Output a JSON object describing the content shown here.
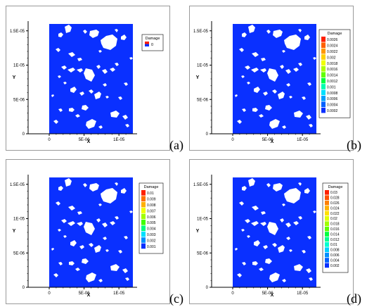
{
  "figure": {
    "panels": [
      {
        "tag": "(a)",
        "legend": {
          "title": "Damage",
          "labels": [
            "0"
          ],
          "colors": [
            "#0a30ff"
          ]
        }
      },
      {
        "tag": "(b)",
        "legend": {
          "title": "Damage",
          "labels": [
            "0.0026",
            "0.0024",
            "0.0022",
            "0.002",
            "0.0018",
            "0.0016",
            "0.0014",
            "0.0012",
            "0.001",
            "0.0008",
            "0.0006",
            "0.0004",
            "0.0002"
          ],
          "colors": [
            "#ff2000",
            "#ff6000",
            "#ff9800",
            "#ffd000",
            "#f0ff00",
            "#b0ff00",
            "#60ff00",
            "#00ff40",
            "#00ffb0",
            "#00e0ff",
            "#00a0ff",
            "#0060ff",
            "#0a30ff"
          ]
        }
      },
      {
        "tag": "(c)",
        "legend": {
          "title": "Damage",
          "labels": [
            "0.01",
            "0.009",
            "0.008",
            "0.007",
            "0.006",
            "0.005",
            "0.004",
            "0.003",
            "0.002",
            "0.001"
          ],
          "colors": [
            "#ff2000",
            "#ff7000",
            "#ffb000",
            "#f0ff00",
            "#a0ff00",
            "#40ff00",
            "#00ff80",
            "#00e0ff",
            "#0090ff",
            "#0a30ff"
          ]
        }
      },
      {
        "tag": "(d)",
        "legend": {
          "title": "Damage",
          "labels": [
            "0.03",
            "0.028",
            "0.026",
            "0.024",
            "0.022",
            "0.02",
            "0.018",
            "0.016",
            "0.014",
            "0.012",
            "0.01",
            "0.008",
            "0.006",
            "0.004",
            "0.002"
          ],
          "colors": [
            "#ff2000",
            "#ff5000",
            "#ff8000",
            "#ffb000",
            "#ffe000",
            "#e0ff00",
            "#a0ff00",
            "#60ff00",
            "#00ff40",
            "#00ff90",
            "#00ffd0",
            "#00d0ff",
            "#0090ff",
            "#0060ff",
            "#0a30ff"
          ]
        }
      }
    ],
    "axes": {
      "xlabel": "X",
      "ylabel": "Y",
      "xticks": [
        "0",
        "5E-06",
        "1E-05"
      ],
      "yticks": [
        "0",
        "5E-06",
        "1E-05",
        "1.5E-05"
      ]
    },
    "field_color": "#0a30ff",
    "hole_color": "#ffffff"
  }
}
